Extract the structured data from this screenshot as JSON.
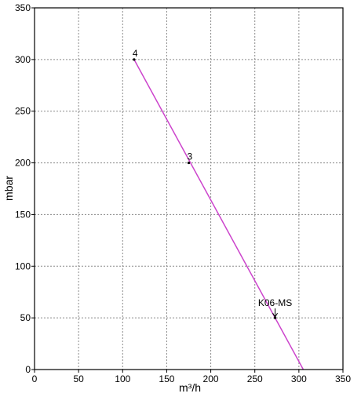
{
  "chart_data": {
    "type": "line",
    "xlabel": "m³/h",
    "ylabel": "mbar",
    "xlim": [
      0,
      350
    ],
    "ylim": [
      0,
      350
    ],
    "xticks": [
      0,
      50,
      100,
      150,
      200,
      250,
      300,
      350
    ],
    "yticks": [
      0,
      50,
      100,
      150,
      200,
      250,
      300,
      350
    ],
    "grid": true,
    "series": [
      {
        "color": "#cc44cc",
        "x": [
          113,
          305
        ],
        "y": [
          300,
          0
        ]
      }
    ],
    "annotations": [
      {
        "label": "4",
        "x": 113,
        "y": 300,
        "arrow": false
      },
      {
        "label": "3",
        "x": 175,
        "y": 200,
        "arrow": false
      },
      {
        "label": "K06-MS",
        "x": 273,
        "y": 50,
        "arrow": true
      }
    ]
  }
}
